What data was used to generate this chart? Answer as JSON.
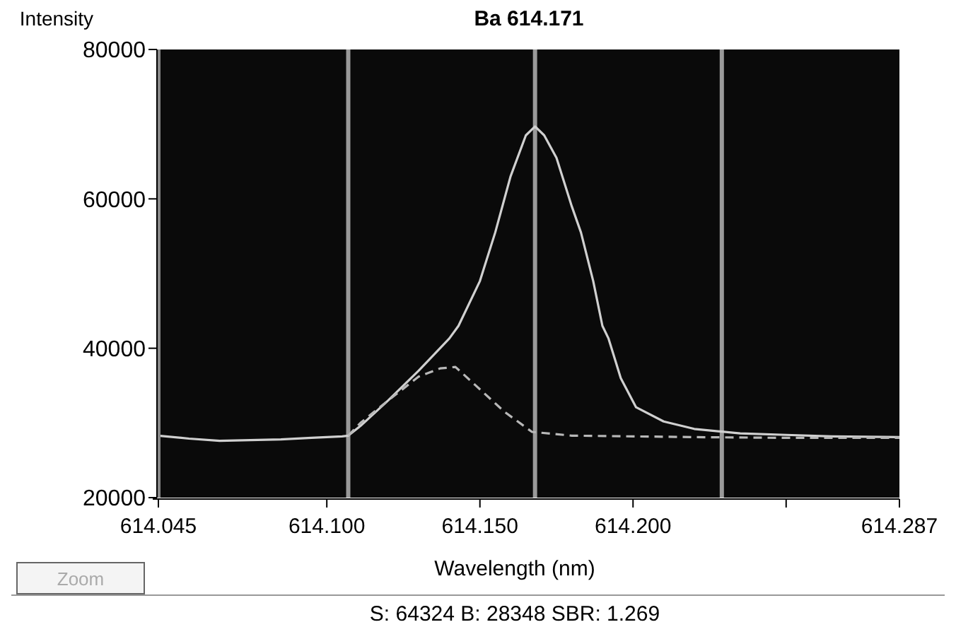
{
  "chart_data": {
    "type": "line",
    "title": "Ba 614.171",
    "xlabel": "Wavelength (nm)",
    "ylabel": "Intensity",
    "xlim": [
      614.045,
      614.287
    ],
    "xticks": [
      614.045,
      {
        "value": 614.1,
        "label": "614.100"
      },
      {
        "value": 614.15,
        "label": "614.150"
      },
      {
        "value": 614.2,
        "label": "614.200"
      },
      {
        "value": 614.25,
        "label": null
      },
      614.287
    ],
    "ylim": [
      20000,
      80000
    ],
    "yticks": [
      20000,
      40000,
      60000,
      80000
    ],
    "series": [
      {
        "color": "#d0d0d0",
        "line_style": "solid",
        "x": [
          614.045,
          614.055,
          614.065,
          614.075,
          614.085,
          614.095,
          614.105,
          614.107,
          614.111,
          614.12,
          614.13,
          614.14,
          614.143,
          614.15,
          614.155,
          614.16,
          614.165,
          614.168,
          614.171,
          614.175,
          614.18,
          614.183,
          614.187,
          614.19,
          614.192,
          614.196,
          614.201,
          614.21,
          614.22,
          614.235,
          614.25,
          614.265,
          614.287
        ],
        "values": [
          28300,
          27900,
          27600,
          27700,
          27800,
          28000,
          28200,
          28300,
          29600,
          33000,
          37000,
          41300,
          43000,
          49000,
          55500,
          63000,
          68500,
          69700,
          68500,
          65500,
          59000,
          55500,
          49000,
          43000,
          41300,
          36000,
          32100,
          30200,
          29200,
          28600,
          28400,
          28200,
          28100
        ]
      },
      {
        "color": "#b8b8b8",
        "line_style": "dashed",
        "x": [
          614.107,
          614.111,
          614.12,
          614.13,
          614.137,
          614.142,
          614.15,
          614.158,
          614.167,
          614.18,
          614.2,
          614.22,
          614.25,
          614.287
        ],
        "values": [
          28300,
          30000,
          33000,
          36200,
          37300,
          37500,
          34500,
          31500,
          28800,
          28300,
          28200,
          28100,
          28000,
          28000
        ]
      }
    ],
    "ref_lines": [
      {
        "axis": "x",
        "value": 614.107,
        "color": "#9a9a9a"
      },
      {
        "axis": "x",
        "value": 614.168,
        "color": "#9a9a9a"
      },
      {
        "axis": "x",
        "value": 614.229,
        "color": "#9a9a9a"
      }
    ],
    "grid": false,
    "annotations": [
      "S: 64324 B: 28348 SBR: 1.269",
      "Zoom"
    ]
  }
}
